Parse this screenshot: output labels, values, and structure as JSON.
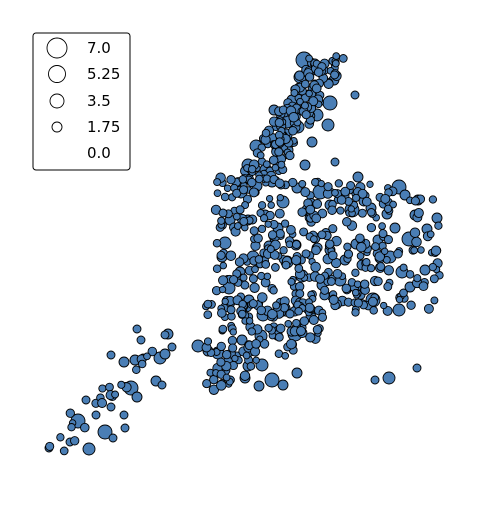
{
  "map": {
    "marker_fill": "#4a7eb5",
    "marker_stroke": "#000000",
    "background": "#ffffff",
    "legend": {
      "entries": [
        {
          "value": 7.0,
          "label": "7.0"
        },
        {
          "value": 5.25,
          "label": "5.25"
        },
        {
          "value": 3.5,
          "label": "3.5"
        },
        {
          "value": 1.75,
          "label": "1.75"
        },
        {
          "value": 0.0,
          "label": "0.0"
        }
      ]
    }
  }
}
